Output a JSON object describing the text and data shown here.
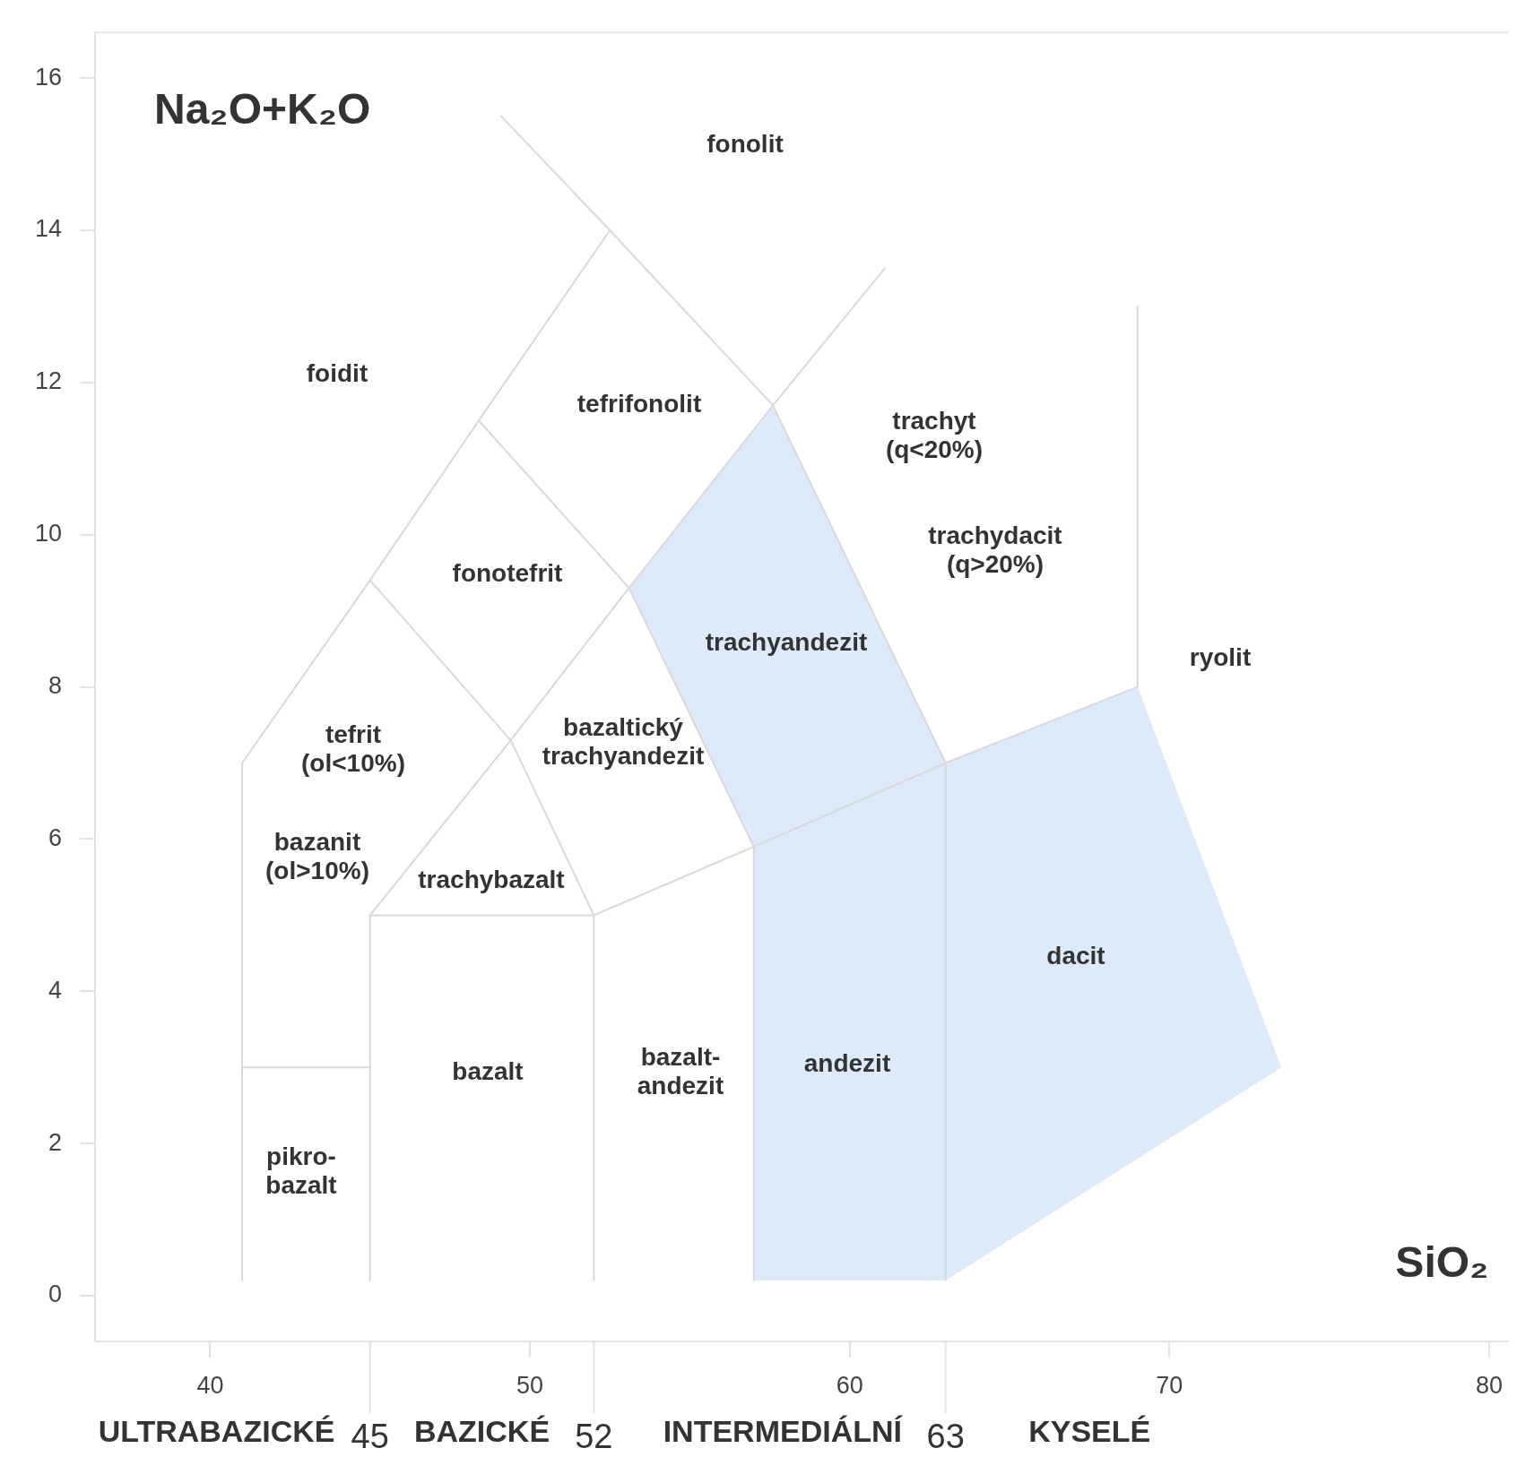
{
  "chart_data": {
    "type": "line",
    "xlabel": "SiO₂",
    "ylabel": "Na₂O+K₂O",
    "xlim": [
      36.4,
      80.6
    ],
    "xticks": [
      40,
      50,
      60,
      70,
      80
    ],
    "ylim": [
      -0.6,
      16.6
    ],
    "yticks": [
      0,
      2,
      4,
      6,
      8,
      10,
      12,
      14,
      16
    ],
    "x2lim": [
      36.4,
      80.6
    ],
    "x2ticks": [
      {
        "value": 40.2,
        "label": "ULTRABAZICKÉ"
      },
      45,
      {
        "value": 48.5,
        "label": "BAZICKÉ"
      },
      52,
      {
        "value": 57.9,
        "label": "INTERMEDIÁLNÍ"
      },
      63,
      {
        "value": 67.5,
        "label": "KYSELÉ"
      }
    ],
    "marker": "none",
    "line_style": "solid",
    "series": [
      {
        "type": "area",
        "color": "#dceafa",
        "x": [
          53.1,
          57.6,
          63,
          69,
          73.5,
          63,
          57,
          57,
          53.1
        ],
        "values": [
          9.3,
          11.7,
          7,
          8,
          3,
          0.2,
          0.2,
          5.9,
          9.3
        ]
      },
      {
        "type": "line",
        "color": "#d9d9d9",
        "x": [
          41,
          41,
          45,
          48.4,
          52.5
        ],
        "values": [
          0.2,
          7,
          9.4,
          11.5,
          14
        ]
      },
      {
        "type": "line",
        "color": "#d9d9d9",
        "x": [
          45,
          49.4,
          53.1,
          57.6,
          61.1
        ],
        "values": [
          5,
          7.3,
          9.3,
          11.7,
          13.5
        ]
      },
      {
        "type": "line",
        "color": "#d9d9d9",
        "x": [
          49.1,
          52.5,
          57.6,
          63,
          63
        ],
        "values": [
          15.5,
          14,
          11.7,
          7,
          0.2
        ]
      },
      {
        "type": "line",
        "color": "#d9d9d9",
        "x": [
          48.4,
          53.1,
          57,
          57
        ],
        "values": [
          11.5,
          9.3,
          5.9,
          0.2
        ]
      },
      {
        "type": "line",
        "color": "#d9d9d9",
        "x": [
          45,
          49.4,
          52,
          52
        ],
        "values": [
          9.4,
          7.3,
          5,
          0.2
        ]
      },
      {
        "type": "line",
        "color": "#d9d9d9",
        "x": [
          45,
          45,
          52,
          57,
          63,
          69,
          69
        ],
        "values": [
          0.2,
          5,
          5,
          5.9,
          7,
          8,
          13
        ]
      },
      {
        "type": "line",
        "color": "#d9d9d9",
        "x": [
          41,
          45
        ],
        "values": [
          3,
          3
        ]
      }
    ],
    "annotations": [
      "fonolit",
      "foidit",
      "tefrifonolit",
      "trachyt\n(q<20%)",
      "trachydacit\n(q>20%)",
      "fonotefrit",
      "trachyandezit",
      "ryolit",
      "tefrit\n(ol<10%)",
      "bazaltický\ntrachyandezit",
      "bazanit\n(ol>10%)",
      "trachybazalt",
      "dacit",
      "bazalt",
      "bazalt-\nandezit",
      "andezit",
      "pikro-\nbazalt"
    ]
  }
}
